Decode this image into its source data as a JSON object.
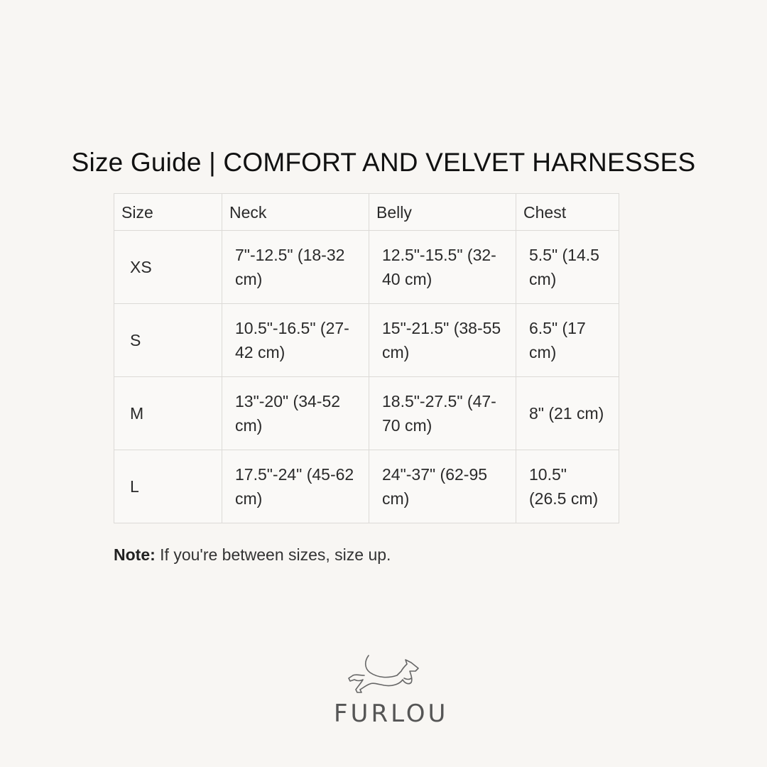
{
  "title": "Size Guide | COMFORT AND VELVET HARNESSES",
  "table": {
    "headers": [
      "Size",
      "Neck",
      "Belly",
      "Chest"
    ],
    "rows": [
      [
        "XS",
        "7\"-12.5\" (18-32 cm)",
        "12.5\"-15.5\" (32-40 cm)",
        "5.5\" (14.5 cm)"
      ],
      [
        "S",
        "10.5\"-16.5\" (27-42 cm)",
        "15\"-21.5\" (38-55 cm)",
        "6.5\" (17 cm)"
      ],
      [
        "M",
        "13\"-20\" (34-52 cm)",
        "18.5\"-27.5\" (47-70 cm)",
        "8\" (21 cm)"
      ],
      [
        "L",
        "17.5\"-24\" (45-62 cm)",
        "24\"-37\" (62-95 cm)",
        "10.5\" (26.5 cm)"
      ]
    ]
  },
  "note": {
    "label": "Note:",
    "text": " If you're between sizes, size up."
  },
  "logo": {
    "text": "FURLOU",
    "icon": "running-dog-icon"
  },
  "colors": {
    "background": "#f8f6f3",
    "border": "#dcdad7",
    "logo": "#555555"
  }
}
